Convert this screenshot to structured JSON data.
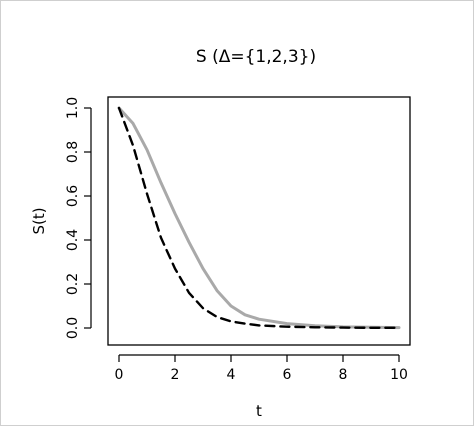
{
  "chart_data": {
    "type": "line",
    "title": "S  (Δ={1,2,3})",
    "xlabel": "t",
    "ylabel": "S(t)",
    "xlim": [
      0,
      10
    ],
    "ylim": [
      0,
      1
    ],
    "x_ticks": [
      "0",
      "2",
      "4",
      "6",
      "8",
      "10"
    ],
    "y_ticks": [
      "0.0",
      "0.2",
      "0.4",
      "0.6",
      "0.8",
      "1.0"
    ],
    "grid": false,
    "series": [
      {
        "style": "solid",
        "color": "#a9a9a9",
        "x": [
          0,
          0.5,
          1,
          1.5,
          2,
          2.5,
          3,
          3.5,
          4,
          4.5,
          5,
          6,
          7,
          8,
          9,
          10
        ],
        "y": [
          1.0,
          0.93,
          0.81,
          0.66,
          0.52,
          0.39,
          0.27,
          0.17,
          0.1,
          0.06,
          0.04,
          0.02,
          0.01,
          0.005,
          0.003,
          0.002
        ]
      },
      {
        "style": "dashed",
        "color": "#000000",
        "x": [
          0,
          0.5,
          1,
          1.5,
          2,
          2.5,
          3,
          3.5,
          4,
          4.5,
          5,
          6,
          7,
          8,
          9,
          10
        ],
        "y": [
          1.0,
          0.83,
          0.61,
          0.41,
          0.27,
          0.16,
          0.09,
          0.05,
          0.03,
          0.02,
          0.012,
          0.006,
          0.003,
          0.002,
          0.001,
          0.001
        ]
      }
    ]
  }
}
